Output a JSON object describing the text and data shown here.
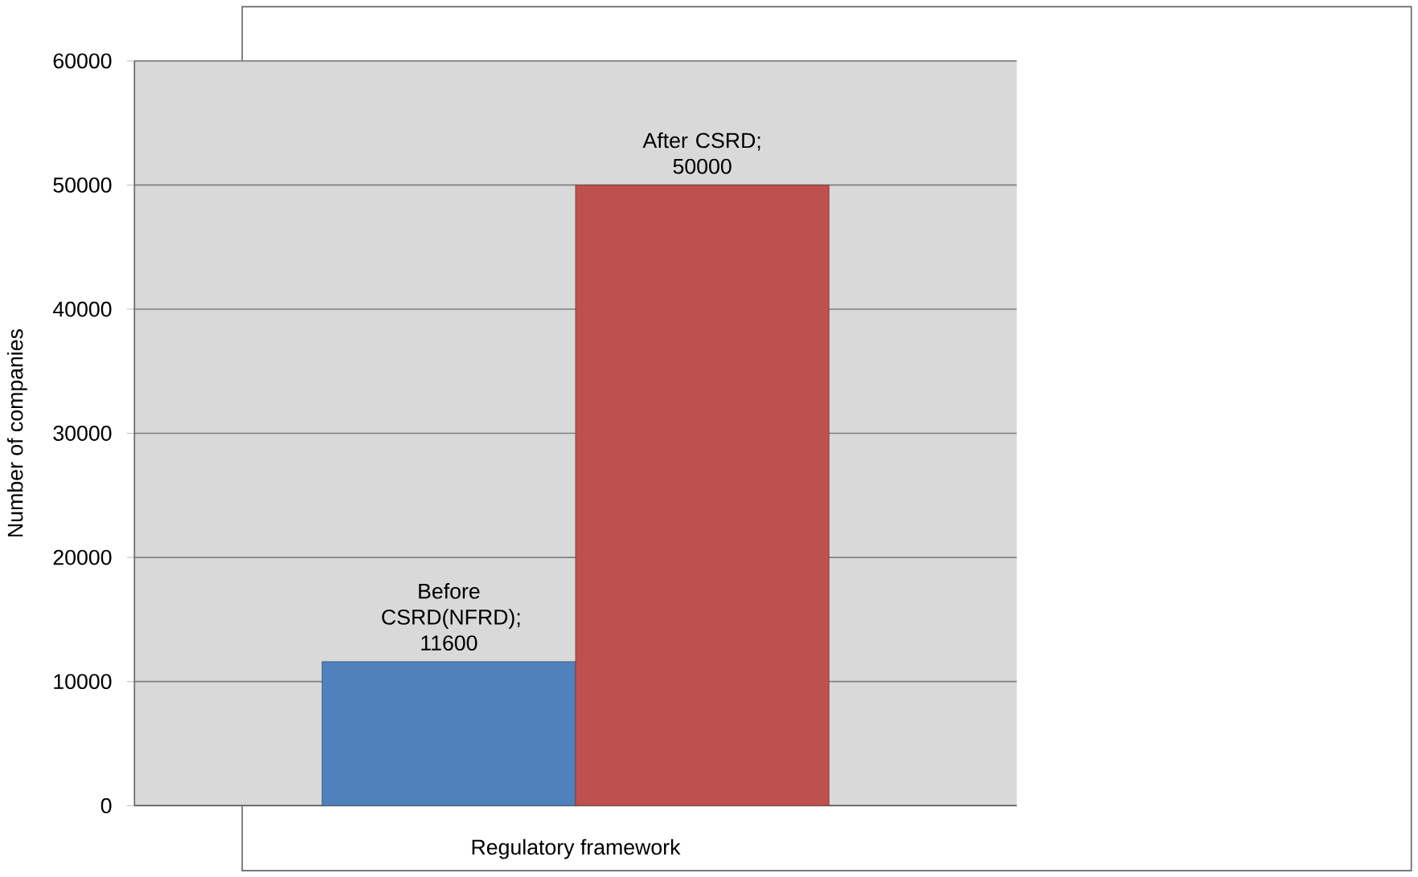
{
  "chart_data": {
    "type": "bar",
    "xlabel": "Regulatory framework",
    "ylabel": "Number of companies",
    "categories": [
      null
    ],
    "series": [
      {
        "color": "#4f81bd",
        "values": [
          11600
        ],
        "value_labels": [
          "Before CSRD(NFRD); 11600"
        ]
      },
      {
        "color": "#c0504d",
        "values": [
          50000
        ],
        "value_labels": [
          "After CSRD; 50000"
        ]
      }
    ],
    "ylim": [
      0,
      60000
    ],
    "yticks": [
      0,
      10000,
      20000,
      30000,
      40000,
      50000,
      60000
    ],
    "grid": "y"
  }
}
